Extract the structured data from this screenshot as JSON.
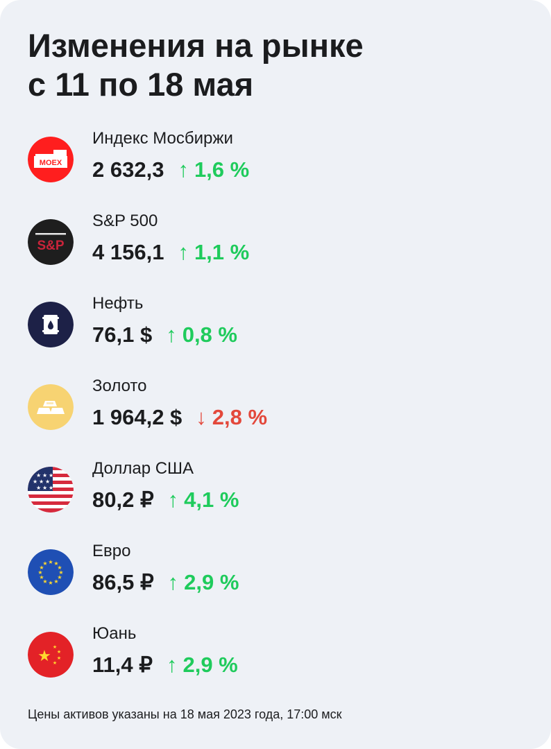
{
  "title": {
    "line1": "Изменения на рынке",
    "line2": "с 11 по 18 мая"
  },
  "assets": [
    {
      "name": "Индекс Мосбиржи",
      "value": "2 632,3",
      "arrow": "↑",
      "change": "1,6 %",
      "direction": "up",
      "icon": "moex-icon",
      "icon_text": "MOEX",
      "icon_bg": "#ff1e1e"
    },
    {
      "name": "S&P 500",
      "value": "4 156,1",
      "arrow": "↑",
      "change": "1,1 %",
      "direction": "up",
      "icon": "sp500-icon",
      "icon_text": "S&P",
      "icon_bg": "#1e1e1e"
    },
    {
      "name": "Нефть",
      "value": "76,1 $",
      "arrow": "↑",
      "change": "0,8 %",
      "direction": "up",
      "icon": "oil-barrel-icon",
      "icon_bg": "#1d2147"
    },
    {
      "name": "Золото",
      "value": "1 964,2 $",
      "arrow": "↓",
      "change": "2,8 %",
      "direction": "down",
      "icon": "gold-bar-icon",
      "icon_bg": "#f7d372"
    },
    {
      "name": "Доллар США",
      "value": "80,2 ₽",
      "arrow": "↑",
      "change": "4,1 %",
      "direction": "up",
      "icon": "us-flag-icon",
      "icon_bg": "#ffffff"
    },
    {
      "name": "Евро",
      "value": "86,5 ₽",
      "arrow": "↑",
      "change": "2,9 %",
      "direction": "up",
      "icon": "eu-flag-icon",
      "icon_bg": "#1f4fb4"
    },
    {
      "name": "Юань",
      "value": "11,4 ₽",
      "arrow": "↑",
      "change": "2,9 %",
      "direction": "up",
      "icon": "china-flag-icon",
      "icon_bg": "#e32227"
    }
  ],
  "colors": {
    "up": "#1fcb5c",
    "down": "#e3483b",
    "text": "#1b1c1e",
    "card_bg": "#eef1f6"
  },
  "footnote": "Цены активов указаны на 18 мая 2023 года, 17:00 мск"
}
